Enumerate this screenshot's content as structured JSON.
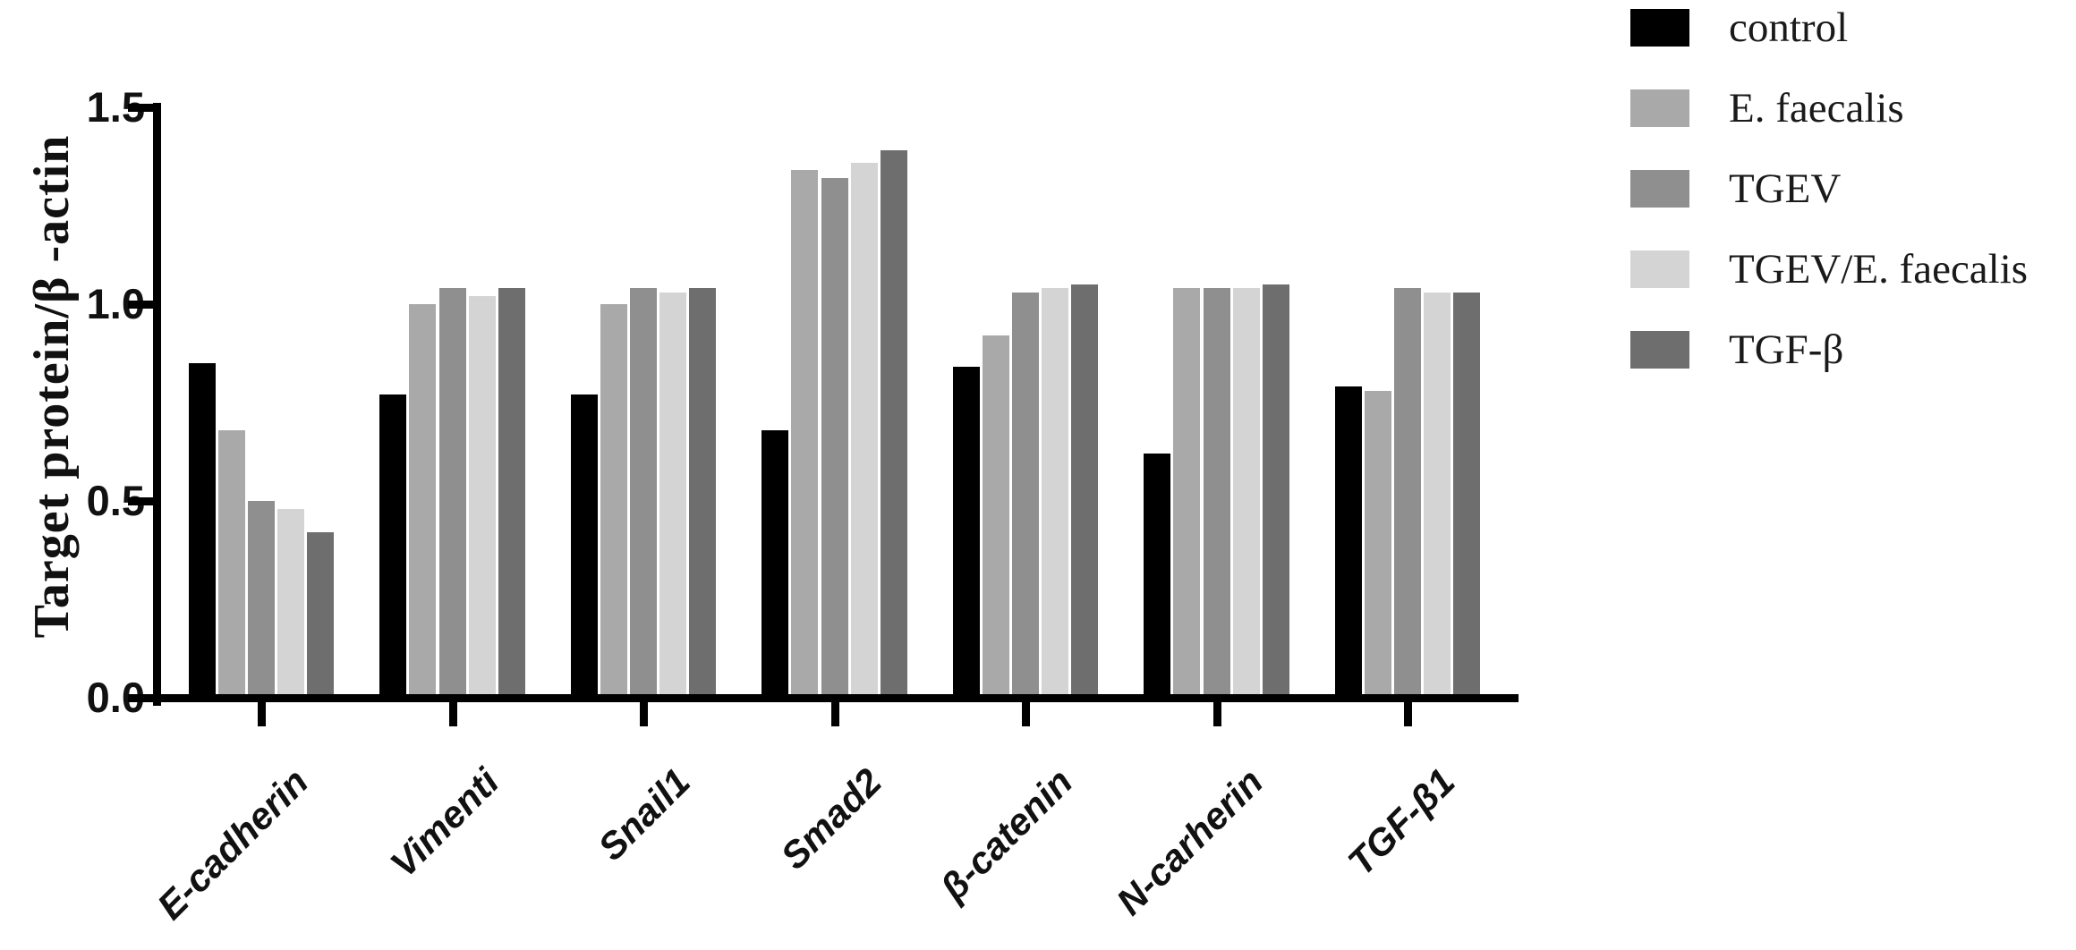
{
  "figure": {
    "background": "#ffffff",
    "axis_color": "#000000"
  },
  "chart_data": {
    "type": "bar",
    "title": "",
    "xlabel": "",
    "ylabel": "Target protein/β -actin",
    "ylim": [
      0,
      1.5
    ],
    "yticks": [
      "0.0",
      "0.5",
      "1.0",
      "1.5"
    ],
    "grid": false,
    "legend_position": "top-right",
    "categories": [
      "E-cadherin",
      "Vimenti",
      "Snail1",
      "Smad2",
      "β-catenin",
      "N-carherin",
      "TGF-β1"
    ],
    "series": [
      {
        "name": "control",
        "color": "#000000",
        "values": [
          0.85,
          0.77,
          0.77,
          0.68,
          0.84,
          0.62,
          0.79
        ]
      },
      {
        "name": "E. faecalis",
        "color": "#a9a9a9",
        "values": [
          0.68,
          1.0,
          1.0,
          1.34,
          0.92,
          1.04,
          0.78
        ]
      },
      {
        "name": "TGEV",
        "color": "#8f8f8f",
        "values": [
          0.5,
          1.04,
          1.04,
          1.32,
          1.03,
          1.04,
          1.04
        ]
      },
      {
        "name": "TGEV/E. faecalis",
        "color": "#d4d4d4",
        "values": [
          0.48,
          1.02,
          1.03,
          1.36,
          1.04,
          1.04,
          1.03
        ]
      },
      {
        "name": "TGF-β",
        "color": "#6e6e6e",
        "values": [
          0.42,
          1.04,
          1.04,
          1.39,
          1.05,
          1.05,
          1.03
        ]
      }
    ]
  }
}
